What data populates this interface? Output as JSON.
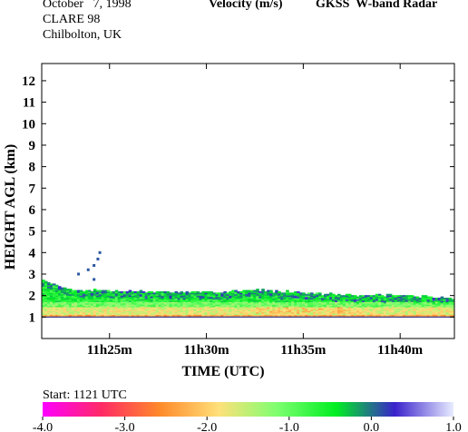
{
  "header": {
    "date": "October   7, 1998",
    "campaign": "CLARE 98",
    "location": "Chilbolton, UK",
    "quantity": "Velocity (m/s)",
    "instrument": "GKSS  W-band Radar"
  },
  "colorbar": {
    "start_label": "Start: 1121 UTC",
    "range": [
      -4.0,
      1.0
    ],
    "tick_labels": [
      "-4.0",
      "-3.0",
      "-2.0",
      "-1.0",
      "0.0",
      "1.0"
    ],
    "tick_values": [
      -4.0,
      -3.0,
      -2.0,
      -1.0,
      0.0,
      1.0
    ],
    "stops": [
      "#ff00ff",
      "#ff2a66",
      "#ff8a2a",
      "#ffe07a",
      "#7dff70",
      "#00ee22",
      "#3a22cc",
      "#e8ecff"
    ]
  },
  "chart_data": {
    "type": "heatmap",
    "title": "Velocity (m/s)  GKSS  W-band Radar",
    "xlabel": "TIME (UTC)",
    "ylabel": "HEIGHT AGL (km)",
    "x_start_minutes": 21.5,
    "x_end_minutes": 42.8,
    "xlim_labels": [
      "11h21.5m",
      "11h42.8m"
    ],
    "x_ticks": [
      {
        "minute": 25,
        "label": "11h25m"
      },
      {
        "minute": 30,
        "label": "11h30m"
      },
      {
        "minute": 35,
        "label": "11h35m"
      },
      {
        "minute": 40,
        "label": "11h40m"
      }
    ],
    "ylim": [
      0,
      12.8
    ],
    "y_ticks": [
      1,
      2,
      3,
      4,
      5,
      6,
      7,
      8,
      9,
      10,
      11,
      12
    ],
    "colorscale_range": [
      -4.0,
      1.0
    ],
    "echo_base_km": 1.0,
    "echo_top_km": [
      {
        "minute": 21.5,
        "top": 2.7
      },
      {
        "minute": 22.5,
        "top": 2.35
      },
      {
        "minute": 23.5,
        "top": 2.25
      },
      {
        "minute": 25.0,
        "top": 2.2
      },
      {
        "minute": 27.0,
        "top": 2.15
      },
      {
        "minute": 30.0,
        "top": 2.15
      },
      {
        "minute": 32.5,
        "top": 2.25
      },
      {
        "minute": 34.0,
        "top": 2.15
      },
      {
        "minute": 36.0,
        "top": 2.05
      },
      {
        "minute": 38.0,
        "top": 2.0
      },
      {
        "minute": 40.0,
        "top": 2.0
      },
      {
        "minute": 41.5,
        "top": 1.9
      },
      {
        "minute": 42.8,
        "top": 1.85
      }
    ],
    "layers": [
      {
        "from_km": 1.0,
        "to_km": 1.12,
        "velocity": -2.3
      },
      {
        "from_km": 1.12,
        "to_km": 1.45,
        "velocity": -1.7
      },
      {
        "from_km": 1.45,
        "to_km": 1.7,
        "velocity": -1.1
      },
      {
        "from_km": 1.7,
        "to_km": 2.3,
        "velocity": -0.6
      }
    ],
    "isolated_echoes": [
      {
        "minute": 23.4,
        "height": 3.0
      },
      {
        "minute": 23.9,
        "height": 3.2
      },
      {
        "minute": 24.2,
        "height": 3.4
      },
      {
        "minute": 24.4,
        "height": 3.7
      },
      {
        "minute": 24.5,
        "height": 4.0
      },
      {
        "minute": 24.2,
        "height": 2.75
      }
    ]
  }
}
